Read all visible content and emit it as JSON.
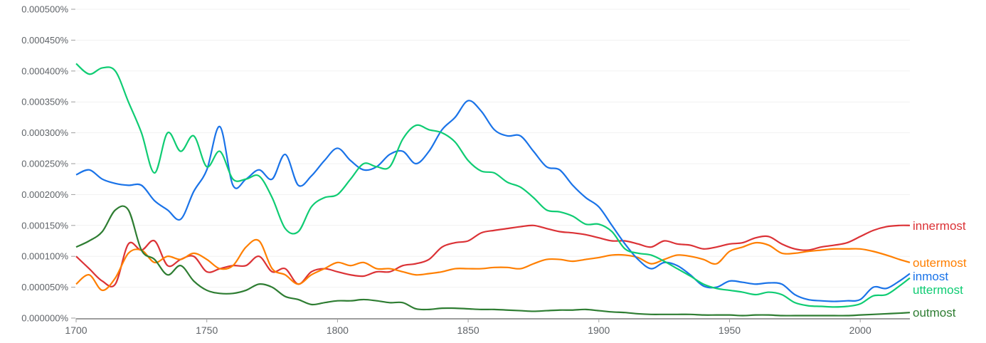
{
  "chart_data": {
    "type": "line",
    "title": "",
    "xlabel": "",
    "ylabel": "",
    "xlim": [
      1700,
      2019
    ],
    "ylim": [
      0,
      0.0005
    ],
    "grid": true,
    "legend": "inline-right",
    "value_multiplier": 1e-06,
    "y_ticks": [
      {
        "value": 0.0,
        "label": "0.000000%"
      },
      {
        "value": 5e-05,
        "label": "0.000050%"
      },
      {
        "value": 0.0001,
        "label": "0.000100%"
      },
      {
        "value": 0.00015,
        "label": "0.000150%"
      },
      {
        "value": 0.0002,
        "label": "0.000200%"
      },
      {
        "value": 0.00025,
        "label": "0.000250%"
      },
      {
        "value": 0.0003,
        "label": "0.000300%"
      },
      {
        "value": 0.00035,
        "label": "0.000350%"
      },
      {
        "value": 0.0004,
        "label": "0.000400%"
      },
      {
        "value": 0.00045,
        "label": "0.000450%"
      },
      {
        "value": 0.0005,
        "label": "0.000500%"
      }
    ],
    "x_ticks": [
      {
        "value": 1700,
        "label": "1700"
      },
      {
        "value": 1750,
        "label": "1750"
      },
      {
        "value": 1800,
        "label": "1800"
      },
      {
        "value": 1850,
        "label": "1850"
      },
      {
        "value": 1900,
        "label": "1900"
      },
      {
        "value": 1950,
        "label": "1950"
      },
      {
        "value": 2000,
        "label": "2000"
      }
    ],
    "x": [
      1700,
      1705,
      1710,
      1715,
      1720,
      1725,
      1730,
      1735,
      1740,
      1745,
      1750,
      1755,
      1760,
      1765,
      1770,
      1775,
      1780,
      1785,
      1790,
      1795,
      1800,
      1805,
      1810,
      1815,
      1820,
      1825,
      1830,
      1835,
      1840,
      1845,
      1850,
      1855,
      1860,
      1865,
      1870,
      1875,
      1880,
      1885,
      1890,
      1895,
      1900,
      1905,
      1910,
      1915,
      1920,
      1925,
      1930,
      1935,
      1940,
      1945,
      1950,
      1955,
      1960,
      1965,
      1970,
      1975,
      1980,
      1985,
      1990,
      1995,
      2000,
      2005,
      2010,
      2015,
      2019
    ],
    "series": [
      {
        "name": "innermost",
        "color": "#db3236",
        "values": [
          100,
          80,
          60,
          55,
          120,
          110,
          125,
          85,
          95,
          100,
          75,
          80,
          85,
          85,
          100,
          75,
          80,
          55,
          75,
          80,
          75,
          70,
          68,
          75,
          75,
          85,
          88,
          95,
          115,
          122,
          125,
          138,
          142,
          145,
          148,
          150,
          145,
          140,
          138,
          135,
          130,
          125,
          125,
          120,
          115,
          125,
          120,
          118,
          112,
          115,
          120,
          122,
          130,
          132,
          120,
          112,
          110,
          115,
          118,
          122,
          132,
          142,
          148,
          150,
          150
        ]
      },
      {
        "name": "outermost",
        "color": "#ff7f00",
        "values": [
          55,
          70,
          45,
          65,
          105,
          110,
          90,
          100,
          95,
          105,
          95,
          80,
          85,
          115,
          125,
          80,
          70,
          55,
          70,
          80,
          90,
          85,
          90,
          80,
          80,
          75,
          70,
          72,
          75,
          80,
          80,
          80,
          82,
          82,
          80,
          88,
          95,
          95,
          92,
          95,
          98,
          102,
          102,
          98,
          88,
          95,
          102,
          100,
          95,
          88,
          108,
          115,
          122,
          118,
          105,
          105,
          108,
          110,
          112,
          112,
          112,
          108,
          102,
          95,
          90
        ]
      },
      {
        "name": "inmost",
        "color": "#1a73e8",
        "values": [
          232,
          240,
          225,
          218,
          215,
          215,
          190,
          175,
          160,
          205,
          240,
          310,
          215,
          225,
          240,
          225,
          265,
          215,
          230,
          255,
          275,
          255,
          240,
          245,
          265,
          270,
          250,
          270,
          305,
          325,
          352,
          335,
          305,
          295,
          295,
          270,
          245,
          240,
          215,
          195,
          180,
          150,
          120,
          95,
          80,
          90,
          85,
          70,
          52,
          50,
          60,
          58,
          55,
          57,
          55,
          38,
          30,
          28,
          27,
          28,
          30,
          50,
          48,
          60,
          72
        ]
      },
      {
        "name": "uttermost",
        "color": "#0fcc73",
        "values": [
          412,
          395,
          405,
          400,
          350,
          300,
          235,
          300,
          270,
          295,
          245,
          270,
          225,
          225,
          230,
          195,
          145,
          140,
          180,
          195,
          200,
          225,
          250,
          245,
          245,
          290,
          312,
          305,
          300,
          285,
          255,
          238,
          235,
          220,
          212,
          195,
          175,
          172,
          165,
          152,
          152,
          140,
          112,
          105,
          102,
          92,
          80,
          68,
          55,
          48,
          45,
          42,
          38,
          42,
          38,
          25,
          20,
          19,
          18,
          19,
          23,
          36,
          38,
          52,
          65
        ]
      },
      {
        "name": "outmost",
        "color": "#2e7d32",
        "values": [
          115,
          125,
          140,
          175,
          175,
          110,
          95,
          70,
          85,
          60,
          45,
          40,
          40,
          45,
          55,
          50,
          35,
          30,
          22,
          25,
          28,
          28,
          30,
          28,
          25,
          25,
          15,
          14,
          16,
          16,
          15,
          14,
          14,
          13,
          12,
          11,
          12,
          13,
          13,
          14,
          12,
          10,
          9,
          7,
          6,
          6,
          6,
          6,
          5,
          5,
          5,
          4,
          5,
          5,
          4,
          4,
          4,
          4,
          4,
          4,
          5,
          6,
          7,
          8,
          9
        ]
      }
    ]
  }
}
